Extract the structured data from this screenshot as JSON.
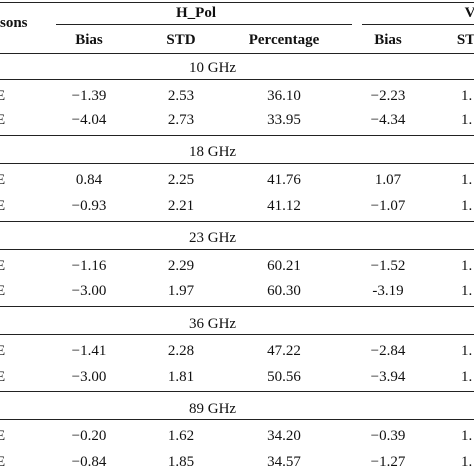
{
  "header": {
    "group_left": "sons",
    "group_h": "H_Pol",
    "group_v": "V",
    "columns": [
      "Bias",
      "STD",
      "Percentage",
      "Bias",
      "ST"
    ]
  },
  "sections": [
    {
      "label": "10 GHz",
      "rows": [
        {
          "name": "E",
          "h_bias": "−1.39",
          "h_std": "2.53",
          "h_pct": "36.10",
          "v_bias": "−2.23",
          "v_std": "1."
        },
        {
          "name": "E",
          "h_bias": "−4.04",
          "h_std": "2.73",
          "h_pct": "33.95",
          "v_bias": "−4.34",
          "v_std": "1."
        }
      ]
    },
    {
      "label": "18 GHz",
      "rows": [
        {
          "name": "E",
          "h_bias": "0.84",
          "h_std": "2.25",
          "h_pct": "41.76",
          "v_bias": "1.07",
          "v_std": "1."
        },
        {
          "name": "E",
          "h_bias": "−0.93",
          "h_std": "2.21",
          "h_pct": "41.12",
          "v_bias": "−1.07",
          "v_std": "1."
        }
      ]
    },
    {
      "label": "23 GHz",
      "rows": [
        {
          "name": "E",
          "h_bias": "−1.16",
          "h_std": "2.29",
          "h_pct": "60.21",
          "v_bias": "−1.52",
          "v_std": "1."
        },
        {
          "name": "E",
          "h_bias": "−3.00",
          "h_std": "1.97",
          "h_pct": "60.30",
          "v_bias": "-3.19",
          "v_std": "1."
        }
      ]
    },
    {
      "label": "36 GHz",
      "rows": [
        {
          "name": "E",
          "h_bias": "−1.41",
          "h_std": "2.28",
          "h_pct": "47.22",
          "v_bias": "−2.84",
          "v_std": "1."
        },
        {
          "name": "E",
          "h_bias": "−3.00",
          "h_std": "1.81",
          "h_pct": "50.56",
          "v_bias": "−3.94",
          "v_std": "1."
        }
      ]
    },
    {
      "label": "89 GHz",
      "rows": [
        {
          "name": "E",
          "h_bias": "−0.20",
          "h_std": "1.62",
          "h_pct": "34.20",
          "v_bias": "−0.39",
          "v_std": "1."
        },
        {
          "name": "E",
          "h_bias": "−0.84",
          "h_std": "1.85",
          "h_pct": "34.57",
          "v_bias": "−1.27",
          "v_std": "1."
        }
      ]
    }
  ]
}
